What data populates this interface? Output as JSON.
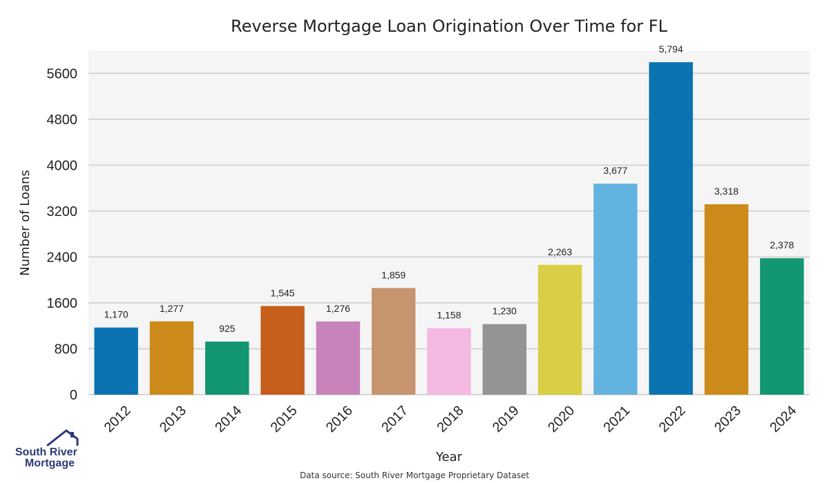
{
  "chart_data": {
    "type": "bar",
    "title": "Reverse Mortgage Loan Origination Over Time for FL",
    "xlabel": "Year",
    "ylabel": "Number of Loans",
    "categories": [
      "2012",
      "2013",
      "2014",
      "2015",
      "2016",
      "2017",
      "2018",
      "2019",
      "2020",
      "2021",
      "2022",
      "2023",
      "2024"
    ],
    "values": [
      1170,
      1277,
      925,
      1545,
      1276,
      1859,
      1158,
      1230,
      2263,
      3677,
      5794,
      3318,
      2378
    ],
    "data_labels": [
      "1,170",
      "1,277",
      "925",
      "1,545",
      "1,276",
      "1,859",
      "1,158",
      "1,230",
      "2,263",
      "3,677",
      "5,794",
      "3,318",
      "2,378"
    ],
    "colors": [
      "#0b73b2",
      "#cc8a1b",
      "#139672",
      "#c55f1b",
      "#c883ba",
      "#c79470",
      "#f4b9e0",
      "#949494",
      "#d9ce44",
      "#63b3e0",
      "#0b73b2",
      "#cc8a1b",
      "#139672"
    ],
    "yticks": [
      0,
      800,
      1600,
      2400,
      3200,
      4000,
      4800,
      5600
    ],
    "ylim": [
      0,
      6000
    ],
    "grid": true,
    "background": "#f5f5f5"
  },
  "footer": {
    "source": "Data source: South River Mortgage Proprietary Dataset"
  },
  "logo": {
    "line1": "South River",
    "line2": "Mortgage",
    "icon": "house-roof-icon"
  }
}
